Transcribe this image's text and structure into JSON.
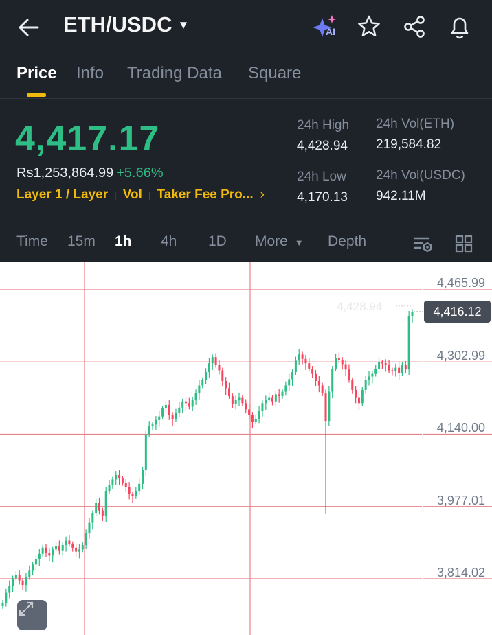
{
  "header": {
    "pair": "ETH/USDC",
    "ai_badge": "AI",
    "icons": [
      "back-arrow-icon",
      "ai-sparkle-icon",
      "star-icon",
      "share-icon",
      "bell-icon"
    ]
  },
  "tabs": [
    "Price",
    "Info",
    "Trading Data",
    "Square"
  ],
  "active_tab": "Price",
  "price": {
    "last": "4,417.17",
    "local": "Rs1,253,864.99",
    "change": "+5.66%",
    "tags": [
      "Layer 1 / Layer",
      "Vol",
      "Taker Fee Pro..."
    ]
  },
  "stats": {
    "high_label": "24h High",
    "high_value": "4,428.94",
    "low_label": "24h Low",
    "low_value": "4,170.13",
    "vol_eth_label": "24h Vol(ETH)",
    "vol_eth_value": "219,584.82",
    "vol_usdc_label": "24h Vol(USDC)",
    "vol_usdc_value": "942.11M"
  },
  "intervals": [
    "Time",
    "15m",
    "1h",
    "4h",
    "1D",
    "More",
    "Depth"
  ],
  "active_interval": "1h",
  "colors": {
    "up": "#2ebd85",
    "down": "#f6465d",
    "accent": "#f0b90b",
    "bg": "#1e2329"
  },
  "chart_data": {
    "type": "candlestick",
    "y_ticks": [
      "4,465.99",
      "4,302.99",
      "4,140.00",
      "3,977.01",
      "3,814.02"
    ],
    "y_tick_values": [
      4465.99,
      4302.99,
      4140.0,
      3977.01,
      3814.02
    ],
    "current_price": "4,416.12",
    "high_marker": "4,428.94",
    "closes": [
      3760,
      3782,
      3798,
      3815,
      3822,
      3810,
      3800,
      3818,
      3832,
      3846,
      3858,
      3870,
      3884,
      3872,
      3866,
      3880,
      3888,
      3878,
      3890,
      3900,
      3892,
      3884,
      3875,
      3880,
      3890,
      3916,
      3940,
      3962,
      3985,
      3968,
      3956,
      4012,
      4025,
      4038,
      4048,
      4040,
      4030,
      4020,
      4005,
      4000,
      4012,
      4028,
      4060,
      4140,
      4158,
      4162,
      4172,
      4180,
      4198,
      4206,
      4184,
      4174,
      4188,
      4200,
      4214,
      4210,
      4202,
      4218,
      4232,
      4250,
      4262,
      4280,
      4300,
      4314,
      4296,
      4284,
      4260,
      4244,
      4226,
      4208,
      4218,
      4222,
      4210,
      4196,
      4184,
      4168,
      4174,
      4192,
      4210,
      4218,
      4222,
      4214,
      4230,
      4226,
      4236,
      4250,
      4264,
      4280,
      4306,
      4320,
      4310,
      4300,
      4288,
      4276,
      4260,
      4250,
      4232,
      4170,
      4236,
      4288,
      4312,
      4308,
      4298,
      4286,
      4262,
      4240,
      4222,
      4210,
      4240,
      4262,
      4270,
      4276,
      4288,
      4302,
      4300,
      4296,
      4284,
      4282,
      4290,
      4278,
      4296,
      4286,
      4406,
      4416
    ]
  }
}
